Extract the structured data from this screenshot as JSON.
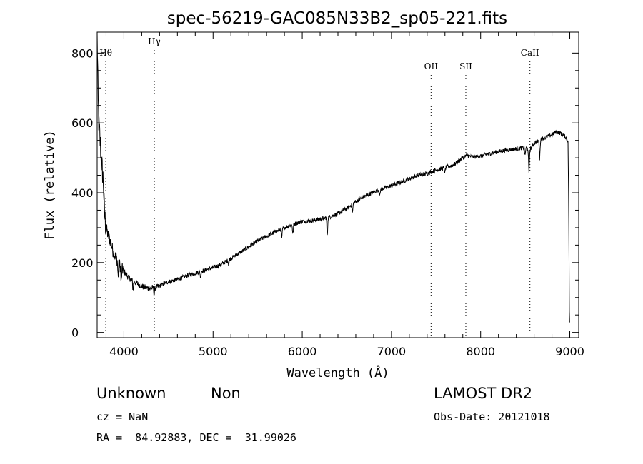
{
  "chart_data": {
    "type": "line",
    "title": "spec-56219-GAC085N33B2_sp05-221.fits",
    "xlabel": "Wavelength (Å)",
    "ylabel": "Flux (relative)",
    "xlim": [
      3700,
      9100
    ],
    "ylim": [
      -15,
      860
    ],
    "xticks": [
      4000,
      5000,
      6000,
      7000,
      8000,
      9000
    ],
    "yticks": [
      0,
      200,
      400,
      600,
      800
    ],
    "grid": false,
    "series": [
      {
        "x": [
          3700,
          3705,
          3712,
          3720,
          3730,
          3740,
          3750,
          3760,
          3770,
          3780,
          3790,
          3800,
          3820,
          3850,
          3880,
          3920,
          3960,
          4000,
          4050,
          4100,
          4150,
          4200,
          4250,
          4300,
          4330,
          4380,
          4450,
          4500,
          4600,
          4700,
          4800,
          4900,
          5000,
          5100,
          5200,
          5300,
          5400,
          5500,
          5600,
          5700,
          5800,
          5900,
          6000,
          6100,
          6200,
          6300,
          6400,
          6500,
          6600,
          6700,
          6800,
          6900,
          7000,
          7100,
          7200,
          7300,
          7400,
          7500,
          7600,
          7700,
          7800,
          7850,
          7900,
          8000,
          8100,
          8200,
          8300,
          8400,
          8500,
          8550,
          8600,
          8700,
          8800,
          8850,
          8900,
          8950,
          8980,
          8990,
          8995,
          9000
        ],
        "y": [
          845,
          780,
          650,
          590,
          560,
          520,
          480,
          460,
          430,
          350,
          320,
          300,
          280,
          260,
          230,
          210,
          190,
          175,
          158,
          148,
          140,
          132,
          128,
          125,
          128,
          130,
          140,
          145,
          152,
          162,
          170,
          178,
          185,
          196,
          212,
          228,
          245,
          262,
          275,
          288,
          300,
          310,
          318,
          320,
          325,
          330,
          340,
          355,
          375,
          390,
          402,
          412,
          420,
          430,
          440,
          450,
          455,
          465,
          472,
          480,
          500,
          508,
          502,
          505,
          512,
          518,
          522,
          526,
          530,
          522,
          542,
          556,
          566,
          575,
          570,
          560,
          548,
          300,
          60,
          8
        ]
      }
    ],
    "absorption_dips": [
      {
        "x": 3935,
        "depth": 40
      },
      {
        "x": 3970,
        "depth": 45
      },
      {
        "x": 4102,
        "depth": 25
      },
      {
        "x": 4340,
        "depth": 20
      },
      {
        "x": 4860,
        "depth": 18
      },
      {
        "x": 5175,
        "depth": 15
      },
      {
        "x": 5770,
        "depth": 30
      },
      {
        "x": 5895,
        "depth": 28
      },
      {
        "x": 6280,
        "depth": 55
      },
      {
        "x": 6563,
        "depth": 25
      },
      {
        "x": 6870,
        "depth": 18
      },
      {
        "x": 7600,
        "depth": 15
      },
      {
        "x": 8498,
        "depth": 25
      },
      {
        "x": 8542,
        "depth": 70
      },
      {
        "x": 8662,
        "depth": 55
      }
    ],
    "lines": [
      {
        "label": "Hθ",
        "x": 3797
      },
      {
        "label": "Hγ",
        "x": 4341
      },
      {
        "label": "OII",
        "x": 7444
      },
      {
        "label": "SII",
        "x": 7834
      },
      {
        "label": "CaII",
        "x": 8553
      }
    ]
  },
  "info": {
    "class": "Unknown",
    "subclass": "Non",
    "survey": "LAMOST DR2",
    "cz": "cz = NaN",
    "obs_date": "Obs-Date: 20121018",
    "radec": "RA =  84.92883, DEC =  31.99026"
  }
}
